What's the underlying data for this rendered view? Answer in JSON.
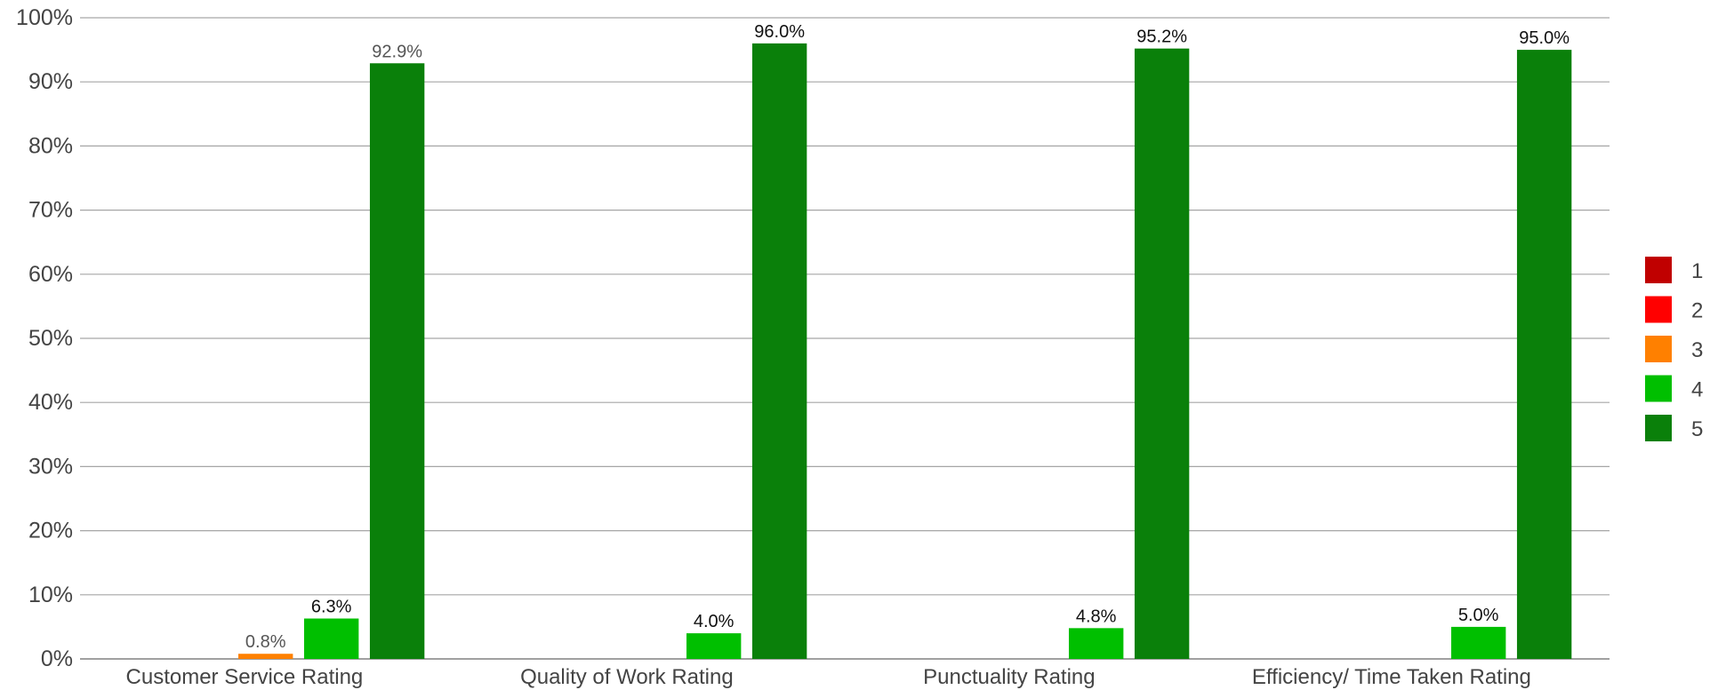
{
  "chart_data": {
    "type": "bar",
    "title": "",
    "xlabel": "",
    "ylabel": "",
    "ylim": [
      0,
      100
    ],
    "yticks": [
      "0%",
      "10%",
      "20%",
      "30%",
      "40%",
      "50%",
      "60%",
      "70%",
      "80%",
      "90%",
      "100%"
    ],
    "grid": true,
    "legend_position": "right",
    "categories": [
      "Customer Service Rating",
      "Quality of Work Rating",
      "Punctuality Rating",
      "Efficiency/ Time Taken Rating"
    ],
    "series": [
      {
        "name": "1",
        "color": "#c00000",
        "values": [
          0,
          0,
          0,
          0
        ],
        "labels": [
          "",
          "",
          "",
          ""
        ]
      },
      {
        "name": "2",
        "color": "#ff0000",
        "values": [
          0,
          0,
          0,
          0
        ],
        "labels": [
          "",
          "",
          "",
          ""
        ]
      },
      {
        "name": "3",
        "color": "#ff8000",
        "values": [
          0.8,
          0,
          0,
          0
        ],
        "labels": [
          "0.8%",
          "",
          "",
          ""
        ]
      },
      {
        "name": "4",
        "color": "#00bf00",
        "values": [
          6.3,
          4.0,
          4.8,
          5.0
        ],
        "labels": [
          "6.3%",
          "4.0%",
          "4.8%",
          "5.0%"
        ]
      },
      {
        "name": "5",
        "color": "#0a800a",
        "values": [
          92.9,
          96.0,
          95.2,
          95.0
        ],
        "labels": [
          "92.9%",
          "96.0%",
          "95.2%",
          "95.0%"
        ]
      }
    ]
  }
}
